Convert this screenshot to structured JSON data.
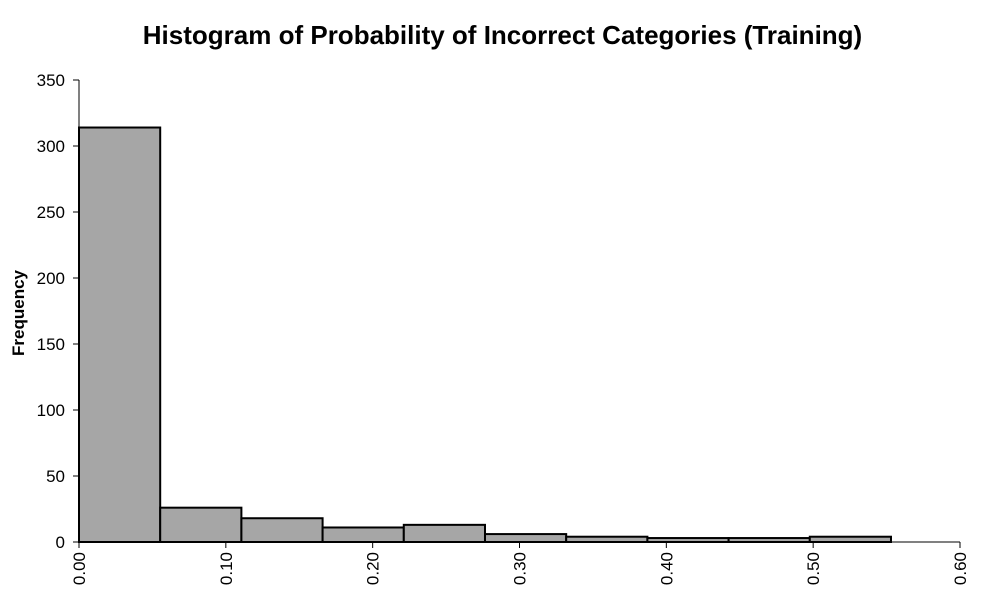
{
  "chart_data": {
    "type": "bar",
    "title": "Histogram of Probability of Incorrect Categories (Training)",
    "xlabel": "",
    "ylabel": "Frequency",
    "ylim": [
      0,
      350
    ],
    "xlim": [
      0,
      0.6
    ],
    "y_ticks": [
      "0",
      "50",
      "100",
      "150",
      "200",
      "250",
      "300",
      "350"
    ],
    "x_ticks": [
      "0.00",
      "0.10",
      "0.20",
      "0.30",
      "0.40",
      "0.50",
      "0.60"
    ],
    "bin_width": 0.0553,
    "bins": [
      {
        "start": 0.0,
        "value": 314
      },
      {
        "start": 0.0553,
        "value": 26
      },
      {
        "start": 0.1106,
        "value": 18
      },
      {
        "start": 0.1659,
        "value": 11
      },
      {
        "start": 0.2212,
        "value": 13
      },
      {
        "start": 0.2765,
        "value": 6
      },
      {
        "start": 0.3318,
        "value": 4
      },
      {
        "start": 0.3871,
        "value": 3
      },
      {
        "start": 0.4424,
        "value": 3
      },
      {
        "start": 0.4977,
        "value": 4
      }
    ],
    "bar_color": "#a6a6a6",
    "bar_edge_color": "#000000",
    "grid": false,
    "legend": "none"
  }
}
